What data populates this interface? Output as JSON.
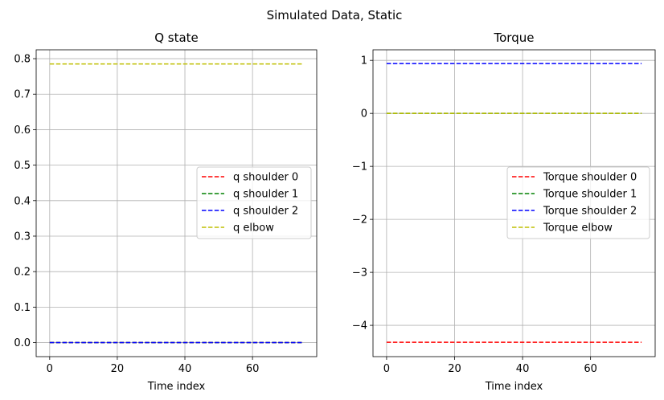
{
  "figure": {
    "suptitle": "Simulated Data, Static"
  },
  "chart_data": [
    {
      "type": "line",
      "title": "Q state",
      "xlabel": "Time index",
      "ylabel": "",
      "xlim": [
        -4,
        79
      ],
      "ylim": [
        -0.0395,
        0.825
      ],
      "xticks": [
        0,
        20,
        40,
        60
      ],
      "xtick_labels": [
        "0",
        "20",
        "40",
        "60"
      ],
      "yticks": [
        0.0,
        0.1,
        0.2,
        0.3,
        0.4,
        0.5,
        0.6,
        0.7,
        0.8
      ],
      "ytick_labels": [
        "0.0",
        "0.1",
        "0.2",
        "0.3",
        "0.4",
        "0.5",
        "0.6",
        "0.7",
        "0.8"
      ],
      "grid": true,
      "legend_position": "center-right",
      "x_range": [
        0,
        75
      ],
      "series": [
        {
          "name": "q shoulder  0",
          "color": "#ff0000",
          "style": "dashed",
          "values": [
            0.0,
            0.0
          ]
        },
        {
          "name": "q shoulder  1",
          "color": "#008000",
          "style": "dashed",
          "values": [
            0.0,
            0.0
          ]
        },
        {
          "name": "q shoulder  2",
          "color": "#0000ff",
          "style": "dashed",
          "values": [
            0.0,
            0.0
          ]
        },
        {
          "name": "q elbow",
          "color": "#bfbf00",
          "style": "dashed",
          "values": [
            0.785,
            0.785
          ]
        }
      ]
    },
    {
      "type": "line",
      "title": "Torque",
      "xlabel": "Time index",
      "ylabel": "",
      "xlim": [
        -4,
        79
      ],
      "ylim": [
        -4.59,
        1.2
      ],
      "xticks": [
        0,
        20,
        40,
        60
      ],
      "xtick_labels": [
        "0",
        "20",
        "40",
        "60"
      ],
      "yticks": [
        1,
        0,
        -1,
        -2,
        -3,
        -4
      ],
      "ytick_labels": [
        "1",
        "0",
        "−1",
        "−2",
        "−3",
        "−4"
      ],
      "grid": true,
      "legend_position": "center-right",
      "x_range": [
        0,
        75
      ],
      "series": [
        {
          "name": "Torque shoulder  0",
          "color": "#ff0000",
          "style": "dashed",
          "values": [
            -4.32,
            -4.32
          ]
        },
        {
          "name": "Torque shoulder  1",
          "color": "#008000",
          "style": "dashed",
          "values": [
            0.0,
            0.0
          ]
        },
        {
          "name": "Torque shoulder  2",
          "color": "#0000ff",
          "style": "dashed",
          "values": [
            0.94,
            0.94
          ]
        },
        {
          "name": "Torque elbow",
          "color": "#bfbf00",
          "style": "dashed",
          "values": [
            0.0,
            0.0
          ]
        }
      ]
    }
  ]
}
